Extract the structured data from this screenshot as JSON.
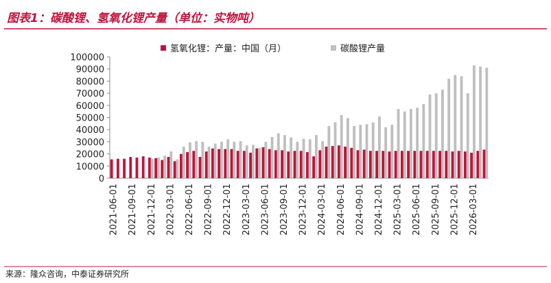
{
  "chart_data": {
    "type": "bar",
    "title": "图表1：碳酸锂、氢氧化锂产量（单位：实物吨）",
    "source": "来源：隆众咨询，中泰证券研究所",
    "categories": [
      "2021-06-01",
      null,
      null,
      "2021-09-01",
      null,
      null,
      "2021-12-01",
      null,
      null,
      "2022-03-01",
      null,
      null,
      "2022-06-01",
      null,
      null,
      "2022-09-01",
      null,
      null,
      "2022-12-01",
      null,
      null,
      "2023-03-01",
      null,
      null,
      "2023-06-01",
      null,
      null,
      "2023-09-01",
      null,
      null,
      "2023-12-01",
      null,
      null,
      "2024-03-01",
      null,
      null,
      "2024-06-01",
      null,
      null,
      "2024-09-01",
      null,
      null,
      "2024-12-01",
      null,
      null,
      "2025-03-01",
      null,
      null,
      "2025-06-01",
      null,
      null,
      "2025-09-01",
      null,
      null,
      "2025-12-01",
      null,
      null,
      "2026-03-01",
      null,
      null
    ],
    "series": [
      {
        "name": "氢氧化锂：产量：中国（月）",
        "color": "#c0143c",
        "values": [
          15500,
          16000,
          16000,
          17500,
          17000,
          18000,
          17000,
          16500,
          15000,
          17500,
          14000,
          20000,
          21500,
          22500,
          17500,
          22000,
          24500,
          24000,
          24000,
          24000,
          22500,
          22500,
          21000,
          24500,
          25500,
          24000,
          23000,
          23000,
          22000,
          22500,
          22500,
          21500,
          18000,
          23000,
          26000,
          26500,
          27000,
          26000,
          25000,
          23000,
          23500,
          22500,
          22500,
          22500,
          22000,
          22500,
          22500,
          22500,
          22500,
          22500,
          22500,
          22500,
          22500,
          22500,
          22000,
          22500,
          22000,
          21000,
          22500,
          23500
        ]
      },
      {
        "name": "碳酸锂产量",
        "color": "#bfbfbf",
        "values": [
          null,
          null,
          null,
          null,
          null,
          null,
          16000,
          17000,
          18500,
          22000,
          15500,
          26000,
          29500,
          30500,
          30000,
          26000,
          28500,
          30000,
          32000,
          30000,
          30500,
          27000,
          27500,
          25000,
          30000,
          34000,
          37000,
          35500,
          33500,
          30000,
          32500,
          32000,
          35500,
          30500,
          43000,
          46000,
          52000,
          49500,
          43000,
          44000,
          44500,
          46000,
          51000,
          42000,
          44000,
          57000,
          55000,
          57000,
          58000,
          61000,
          69000,
          70000,
          73000,
          82000,
          85000,
          84000,
          70000,
          93000,
          92000,
          91000
        ]
      }
    ],
    "ylim": [
      0,
      100000
    ],
    "yticks": [
      0,
      10000,
      20000,
      30000,
      40000,
      50000,
      60000,
      70000,
      80000,
      90000,
      100000
    ],
    "grid": false
  }
}
